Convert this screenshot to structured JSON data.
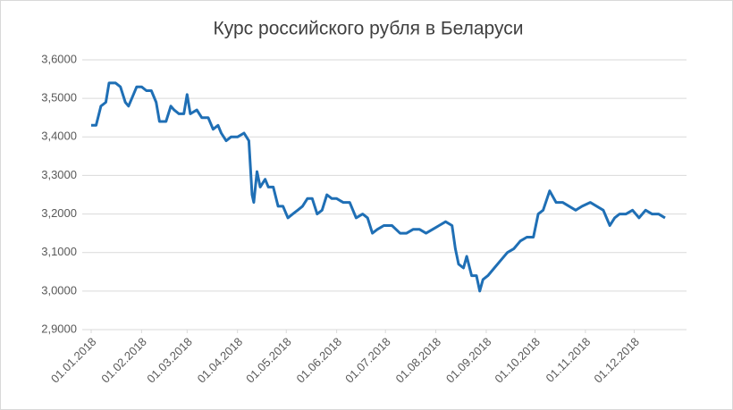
{
  "chart_data": {
    "type": "line",
    "title": "Курс российского рубля в Беларуси",
    "x": [
      "01.01.2018",
      "04.01.2018",
      "07.01.2018",
      "10.01.2018",
      "12.01.2018",
      "16.01.2018",
      "19.01.2018",
      "22.01.2018",
      "24.01.2018",
      "27.01.2018",
      "29.01.2018",
      "01.02.2018",
      "04.02.2018",
      "07.02.2018",
      "10.02.2018",
      "12.02.2018",
      "16.02.2018",
      "19.02.2018",
      "21.02.2018",
      "24.02.2018",
      "27.02.2018",
      "01.03.2018",
      "03.03.2018",
      "07.03.2018",
      "10.03.2018",
      "14.03.2018",
      "17.03.2018",
      "20.03.2018",
      "22.03.2018",
      "25.03.2018",
      "28.03.2018",
      "01.04.2018",
      "05.04.2018",
      "08.04.2018",
      "10.04.2018",
      "11.04.2018",
      "13.04.2018",
      "15.04.2018",
      "18.04.2018",
      "20.04.2018",
      "23.04.2018",
      "26.04.2018",
      "29.04.2018",
      "02.05.2018",
      "05.05.2018",
      "08.05.2018",
      "11.05.2018",
      "14.05.2018",
      "17.05.2018",
      "20.05.2018",
      "23.05.2018",
      "26.05.2018",
      "29.05.2018",
      "01.06.2018",
      "05.06.2018",
      "09.06.2018",
      "13.06.2018",
      "17.06.2018",
      "20.06.2018",
      "23.06.2018",
      "26.06.2018",
      "30.06.2018",
      "05.07.2018",
      "10.07.2018",
      "14.07.2018",
      "18.07.2018",
      "22.07.2018",
      "26.07.2018",
      "30.07.2018",
      "03.08.2018",
      "07.08.2018",
      "11.08.2018",
      "13.08.2018",
      "15.08.2018",
      "18.08.2018",
      "20.08.2018",
      "23.08.2018",
      "26.08.2018",
      "28.08.2018",
      "30.08.2018",
      "02.09.2018",
      "06.09.2018",
      "10.09.2018",
      "14.09.2018",
      "18.09.2018",
      "22.09.2018",
      "26.09.2018",
      "30.09.2018",
      "03.10.2018",
      "06.10.2018",
      "10.10.2018",
      "14.10.2018",
      "18.10.2018",
      "22.10.2018",
      "26.10.2018",
      "30.10.2018",
      "04.11.2018",
      "08.11.2018",
      "12.11.2018",
      "16.11.2018",
      "19.11.2018",
      "22.11.2018",
      "26.11.2018",
      "30.11.2018",
      "04.12.2018",
      "08.12.2018",
      "12.12.2018",
      "16.12.2018",
      "20.12.2018"
    ],
    "series": [
      {
        "color": "#1f6fb5",
        "values": [
          3.43,
          3.43,
          3.48,
          3.49,
          3.54,
          3.54,
          3.53,
          3.49,
          3.48,
          3.51,
          3.53,
          3.53,
          3.52,
          3.52,
          3.49,
          3.44,
          3.44,
          3.48,
          3.47,
          3.46,
          3.46,
          3.51,
          3.46,
          3.47,
          3.45,
          3.45,
          3.42,
          3.43,
          3.41,
          3.39,
          3.4,
          3.4,
          3.41,
          3.39,
          3.25,
          3.23,
          3.31,
          3.27,
          3.29,
          3.27,
          3.27,
          3.22,
          3.22,
          3.19,
          3.2,
          3.21,
          3.22,
          3.24,
          3.24,
          3.2,
          3.21,
          3.25,
          3.24,
          3.24,
          3.23,
          3.23,
          3.19,
          3.2,
          3.19,
          3.15,
          3.16,
          3.17,
          3.17,
          3.15,
          3.15,
          3.16,
          3.16,
          3.15,
          3.16,
          3.17,
          3.18,
          3.17,
          3.11,
          3.07,
          3.06,
          3.09,
          3.04,
          3.04,
          3.0,
          3.03,
          3.04,
          3.06,
          3.08,
          3.1,
          3.11,
          3.13,
          3.14,
          3.14,
          3.2,
          3.21,
          3.26,
          3.23,
          3.23,
          3.22,
          3.21,
          3.22,
          3.23,
          3.22,
          3.21,
          3.17,
          3.19,
          3.2,
          3.2,
          3.21,
          3.19,
          3.21,
          3.2,
          3.2,
          3.19
        ]
      }
    ],
    "xlim": [
      "01.01.2018",
      "31.12.2018"
    ],
    "xticks": [
      "01.01.2018",
      "01.02.2018",
      "01.03.2018",
      "01.04.2018",
      "01.05.2018",
      "01.06.2018",
      "01.07.2018",
      "01.08.2018",
      "01.09.2018",
      "01.10.2018",
      "01.11.2018",
      "01.12.2018"
    ],
    "ylim": [
      2.9,
      3.6
    ],
    "yticks": [
      {
        "value": 2.9,
        "label": "2,9000"
      },
      {
        "value": 3.0,
        "label": "3,0000"
      },
      {
        "value": 3.1,
        "label": "3,1000"
      },
      {
        "value": 3.2,
        "label": "3,2000"
      },
      {
        "value": 3.3,
        "label": "3,3000"
      },
      {
        "value": 3.4,
        "label": "3,4000"
      },
      {
        "value": 3.5,
        "label": "3,5000"
      },
      {
        "value": 3.6,
        "label": "3,6000"
      }
    ],
    "grid": true
  }
}
